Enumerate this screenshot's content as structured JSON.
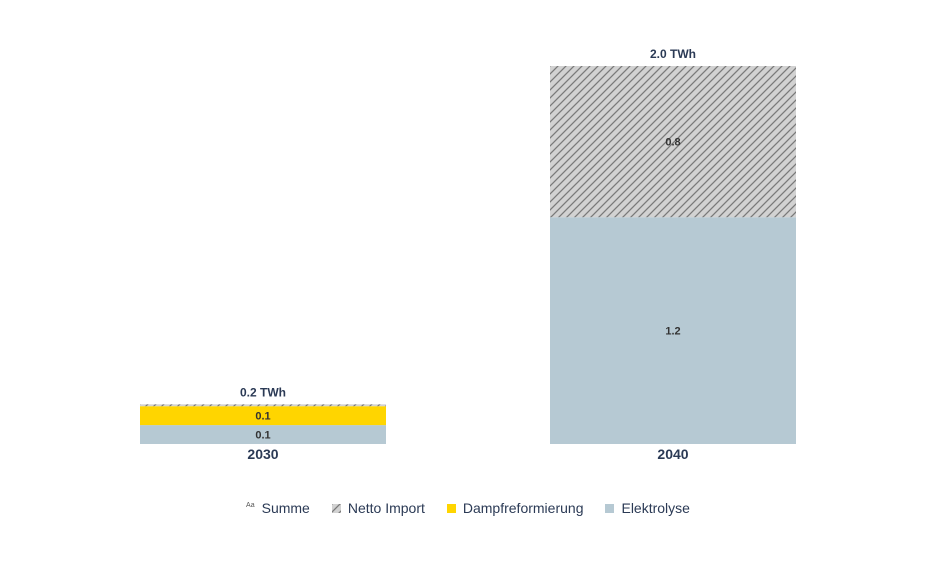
{
  "chart_data": {
    "type": "bar",
    "stacked": true,
    "categories": [
      "2030",
      "2040"
    ],
    "series": [
      {
        "name": "Elektrolyse",
        "values": [
          0.1,
          1.2
        ],
        "labels": [
          "0.1",
          "1.2"
        ],
        "color": "#b6c9d3"
      },
      {
        "name": "Dampfreformierung",
        "values": [
          0.1,
          0
        ],
        "labels": [
          "0.1",
          ""
        ],
        "color": "#ffd500"
      },
      {
        "name": "Netto Import",
        "values": [
          0.01,
          0.8
        ],
        "labels": [
          "",
          "0.8"
        ],
        "color": "#c8c8c8",
        "pattern": "hatch"
      }
    ],
    "totals": [
      "0.2 TWh",
      "2.0 TWh"
    ],
    "legend": [
      "Summe",
      "Netto Import",
      "Dampfreformierung",
      "Elektrolyse"
    ],
    "legend_position": "bottom",
    "ylim": [
      0,
      2.0
    ],
    "grid": false
  }
}
